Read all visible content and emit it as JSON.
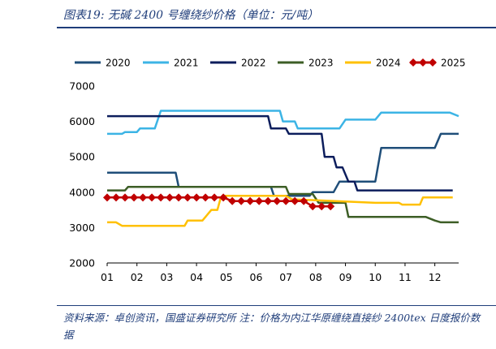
{
  "figure": {
    "title": "图表19:  无碱 2400 号缠绕纱价格（单位：元/吨）",
    "source": "资料来源：卓创资讯，国盛证券研究所    注：价格为内江华原缠绕直接纱 2400tex 日度报价数据"
  },
  "chart_data": {
    "type": "line",
    "xlabel": "",
    "ylabel": "",
    "x_ticks": [
      "01",
      "02",
      "03",
      "04",
      "05",
      "06",
      "07",
      "08",
      "09",
      "10",
      "11",
      "12"
    ],
    "xlim": [
      1,
      12.8
    ],
    "ylim": [
      2000,
      7000
    ],
    "y_ticks": [
      2000,
      3000,
      4000,
      5000,
      6000,
      7000
    ],
    "grid": false,
    "legend_position": "top",
    "series": [
      {
        "name": "2020",
        "color": "#1f4e79",
        "marker": "none",
        "points": [
          [
            1.0,
            4550
          ],
          [
            3.3,
            4550
          ],
          [
            3.4,
            4150
          ],
          [
            6.5,
            4150
          ],
          [
            6.6,
            3900
          ],
          [
            7.8,
            3900
          ],
          [
            7.9,
            4000
          ],
          [
            8.6,
            4000
          ],
          [
            8.8,
            4300
          ],
          [
            10.0,
            4300
          ],
          [
            10.2,
            5250
          ],
          [
            11.1,
            5250
          ],
          [
            12.0,
            5250
          ],
          [
            12.2,
            5650
          ],
          [
            12.8,
            5650
          ]
        ]
      },
      {
        "name": "2021",
        "color": "#3cb4e5",
        "marker": "none",
        "points": [
          [
            1.0,
            5650
          ],
          [
            1.5,
            5650
          ],
          [
            1.6,
            5700
          ],
          [
            2.0,
            5700
          ],
          [
            2.1,
            5800
          ],
          [
            2.6,
            5800
          ],
          [
            2.8,
            6300
          ],
          [
            6.8,
            6300
          ],
          [
            6.9,
            6000
          ],
          [
            7.3,
            6000
          ],
          [
            7.4,
            5800
          ],
          [
            8.8,
            5800
          ],
          [
            9.0,
            6050
          ],
          [
            10.0,
            6050
          ],
          [
            10.2,
            6250
          ],
          [
            12.5,
            6250
          ],
          [
            12.8,
            6150
          ]
        ]
      },
      {
        "name": "2022",
        "color": "#0c1d5c",
        "marker": "none",
        "points": [
          [
            1.0,
            6150
          ],
          [
            6.4,
            6150
          ],
          [
            6.5,
            5800
          ],
          [
            7.0,
            5800
          ],
          [
            7.1,
            5650
          ],
          [
            8.2,
            5650
          ],
          [
            8.3,
            5000
          ],
          [
            8.6,
            5000
          ],
          [
            8.7,
            4700
          ],
          [
            8.9,
            4700
          ],
          [
            9.1,
            4300
          ],
          [
            9.3,
            4300
          ],
          [
            9.4,
            4050
          ],
          [
            12.6,
            4050
          ]
        ]
      },
      {
        "name": "2023",
        "color": "#3d5e26",
        "marker": "none",
        "points": [
          [
            1.0,
            4050
          ],
          [
            1.6,
            4050
          ],
          [
            1.7,
            4150
          ],
          [
            7.0,
            4150
          ],
          [
            7.1,
            3950
          ],
          [
            7.9,
            3950
          ],
          [
            8.1,
            3700
          ],
          [
            9.0,
            3700
          ],
          [
            9.1,
            3300
          ],
          [
            11.7,
            3300
          ],
          [
            12.0,
            3200
          ],
          [
            12.2,
            3150
          ],
          [
            12.8,
            3150
          ]
        ]
      },
      {
        "name": "2024",
        "color": "#ffc000",
        "marker": "none",
        "points": [
          [
            1.0,
            3150
          ],
          [
            1.3,
            3150
          ],
          [
            1.5,
            3050
          ],
          [
            3.6,
            3050
          ],
          [
            3.7,
            3200
          ],
          [
            4.2,
            3200
          ],
          [
            4.5,
            3500
          ],
          [
            4.7,
            3500
          ],
          [
            4.8,
            3800
          ],
          [
            4.9,
            3900
          ],
          [
            7.0,
            3900
          ],
          [
            7.2,
            3800
          ],
          [
            10.0,
            3700
          ],
          [
            10.8,
            3700
          ],
          [
            10.9,
            3650
          ],
          [
            11.5,
            3650
          ],
          [
            11.6,
            3850
          ],
          [
            12.6,
            3850
          ]
        ]
      },
      {
        "name": "2025",
        "color": "#c00000",
        "marker": "diamond",
        "points": [
          [
            1.0,
            3850
          ],
          [
            1.3,
            3850
          ],
          [
            1.6,
            3850
          ],
          [
            1.9,
            3850
          ],
          [
            2.2,
            3850
          ],
          [
            2.5,
            3850
          ],
          [
            2.8,
            3850
          ],
          [
            3.1,
            3850
          ],
          [
            3.4,
            3850
          ],
          [
            3.7,
            3850
          ],
          [
            4.0,
            3850
          ],
          [
            4.3,
            3850
          ],
          [
            4.6,
            3850
          ],
          [
            4.9,
            3850
          ],
          [
            5.2,
            3750
          ],
          [
            5.5,
            3750
          ],
          [
            5.8,
            3750
          ],
          [
            6.1,
            3750
          ],
          [
            6.4,
            3750
          ],
          [
            6.7,
            3750
          ],
          [
            7.0,
            3750
          ],
          [
            7.3,
            3750
          ],
          [
            7.6,
            3750
          ],
          [
            7.9,
            3600
          ],
          [
            8.2,
            3600
          ],
          [
            8.5,
            3600
          ]
        ]
      }
    ]
  }
}
